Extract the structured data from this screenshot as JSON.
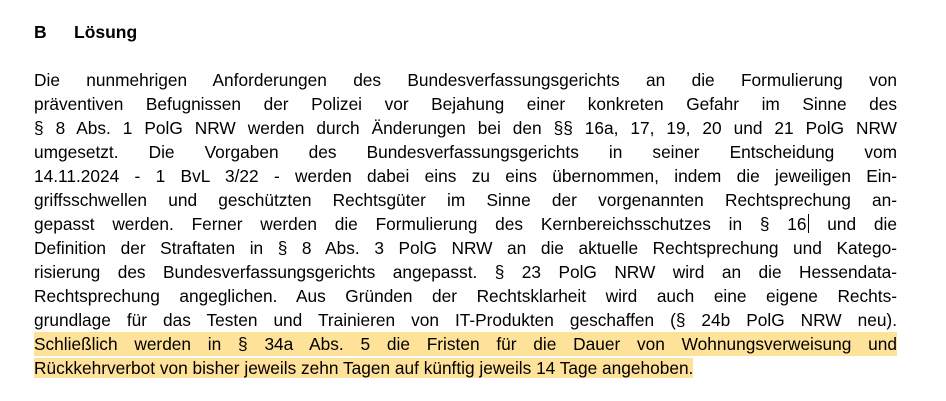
{
  "heading": {
    "number": "B",
    "title": "Lösung"
  },
  "highlight_color": "#FFE29A",
  "paragraph": {
    "lines": [
      "Die nunmehrigen Anforderungen des Bundesverfassungsgerichts an die Formulierung von",
      "präventiven Befugnissen der Polizei vor Bejahung einer konkreten Gefahr im Sinne des",
      "§ 8 Abs. 1 PolG NRW werden durch Änderungen bei den §§ 16a, 17, 19, 20 und 21 PolG NRW",
      "umgesetzt. Die Vorgaben des Bundesverfassungsgerichts in seiner Entscheidung vom",
      "14.11.2024 - 1 BvL 3/22 - werden dabei eins zu eins übernommen, indem die jeweiligen Ein-",
      "griffsschwellen und geschützten Rechtsgüter im Sinne der vorgenannten Rechtsprechung an-",
      "gepasst werden. Ferner werden die Formulierung des Kernbereichsschutzes in § 16",
      "und die",
      "Definition der Straftaten in § 8 Abs. 3 PolG NRW an die aktuelle Rechtsprechung und Katego-",
      "risierung des Bundesverfassungsgerichts angepasst. § 23 PolG NRW wird an die Hessendata-",
      "Rechtsprechung angeglichen. Aus Gründen der Rechtsklarheit wird auch eine eigene Rechts-",
      "grundlage für das Testen und Trainieren von IT-Produkten geschaffen (§ 24b PolG NRW neu).",
      "Schließlich werden in § 34a Abs. 5 die Fristen für die Dauer von Wohnungsverweisung und",
      "Rückkehrverbot von bisher jeweils zehn Tagen auf künftig jeweils 14 Tage angehoben."
    ]
  }
}
